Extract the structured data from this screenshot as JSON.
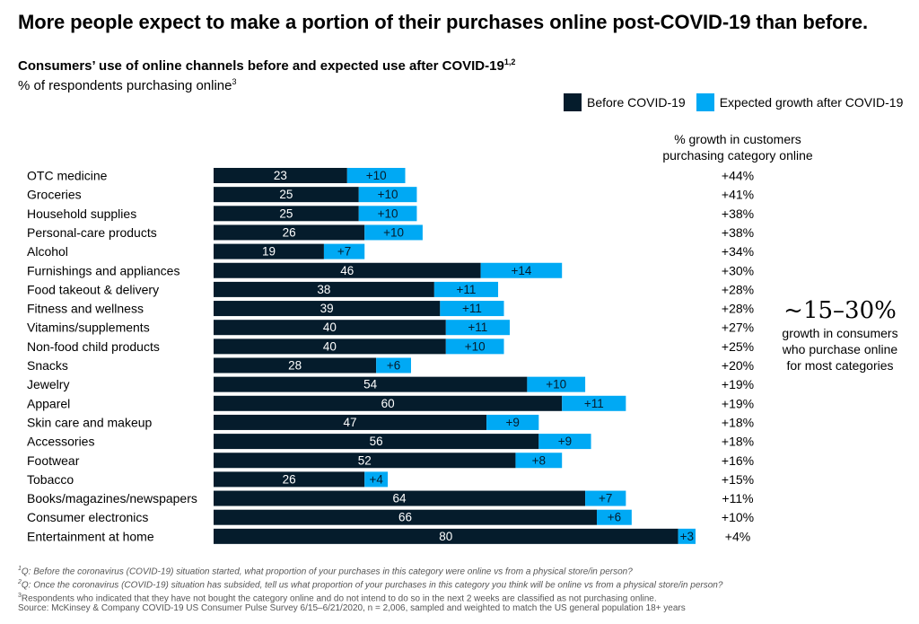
{
  "headline": "More people expect to make a portion of their purchases online post-COVID-19 than before.",
  "chart_data": {
    "type": "bar",
    "orientation": "horizontal",
    "stacked": true,
    "title": "Consumers’ use of online channels before and expected use after COVID-19",
    "title_sup": "1,2",
    "subtitle": "% of respondents purchasing online",
    "subtitle_sup": "3",
    "legend_position": "top-right",
    "categories": [
      "OTC medicine",
      "Groceries",
      "Household supplies",
      "Personal-care products",
      "Alcohol",
      "Furnishings and appliances",
      "Food takeout & delivery",
      "Fitness and wellness",
      "Vitamins/supplements",
      "Non-food child products",
      "Snacks",
      "Jewelry",
      "Apparel",
      "Skin care and makeup",
      "Accessories",
      "Footwear",
      "Tobacco",
      "Books/magazines/newspapers",
      "Consumer electronics",
      "Entertainment at home"
    ],
    "series": [
      {
        "name": "Before COVID-19",
        "color": "#051c2c",
        "values": [
          23,
          25,
          25,
          26,
          19,
          46,
          38,
          39,
          40,
          40,
          28,
          54,
          60,
          47,
          56,
          52,
          26,
          64,
          66,
          80
        ],
        "labels": [
          "23",
          "25",
          "25",
          "26",
          "19",
          "46",
          "38",
          "39",
          "40",
          "40",
          "28",
          "54",
          "60",
          "47",
          "56",
          "52",
          "26",
          "64",
          "66",
          "80"
        ]
      },
      {
        "name": "Expected growth after COVID-19",
        "color": "#00a9f4",
        "values": [
          10,
          10,
          10,
          10,
          7,
          14,
          11,
          11,
          11,
          10,
          6,
          10,
          11,
          9,
          9,
          8,
          4,
          7,
          6,
          3
        ],
        "labels": [
          "+10",
          "+10",
          "+10",
          "+10",
          "+7",
          "+14",
          "+11",
          "+11",
          "+11",
          "+10",
          "+6",
          "+10",
          "+11",
          "+9",
          "+9",
          "+8",
          "+4",
          "+7",
          "+6",
          "+3"
        ]
      }
    ],
    "growth_header": [
      "% growth in customers",
      "purchasing category online"
    ],
    "growth": [
      "+44%",
      "+41%",
      "+38%",
      "+38%",
      "+34%",
      "+30%",
      "+28%",
      "+28%",
      "+27%",
      "+25%",
      "+20%",
      "+19%",
      "+19%",
      "+18%",
      "+18%",
      "+16%",
      "+15%",
      "+11%",
      "+10%",
      "+4%"
    ],
    "grid": false
  },
  "callout": {
    "big": "~15–30%",
    "lines": [
      "growth in consumers",
      "who purchase online",
      "for most categories"
    ]
  },
  "footnotes": {
    "f1_sup": "1",
    "f1": "Q: Before the coronavirus (COVID-19) situation started, what proportion of your purchases in this category were online vs from a physical store/in person?",
    "f2_sup": "2",
    "f2": "Q: Once the coronavirus (COVID-19) situation has subsided, tell us what proportion of your purchases in this category you think will be online vs from a physical store/in person?",
    "f3_sup": "3",
    "f3": "Respondents who indicated that they have not bought the category online and do not intend to do so in the next 2 weeks are classified as not purchasing online.",
    "source": "Source: McKinsey & Company COVID-19 US Consumer Pulse Survey 6/15–6/21/2020, n = 2,006, sampled and weighted to match the US general population 18+ years"
  }
}
